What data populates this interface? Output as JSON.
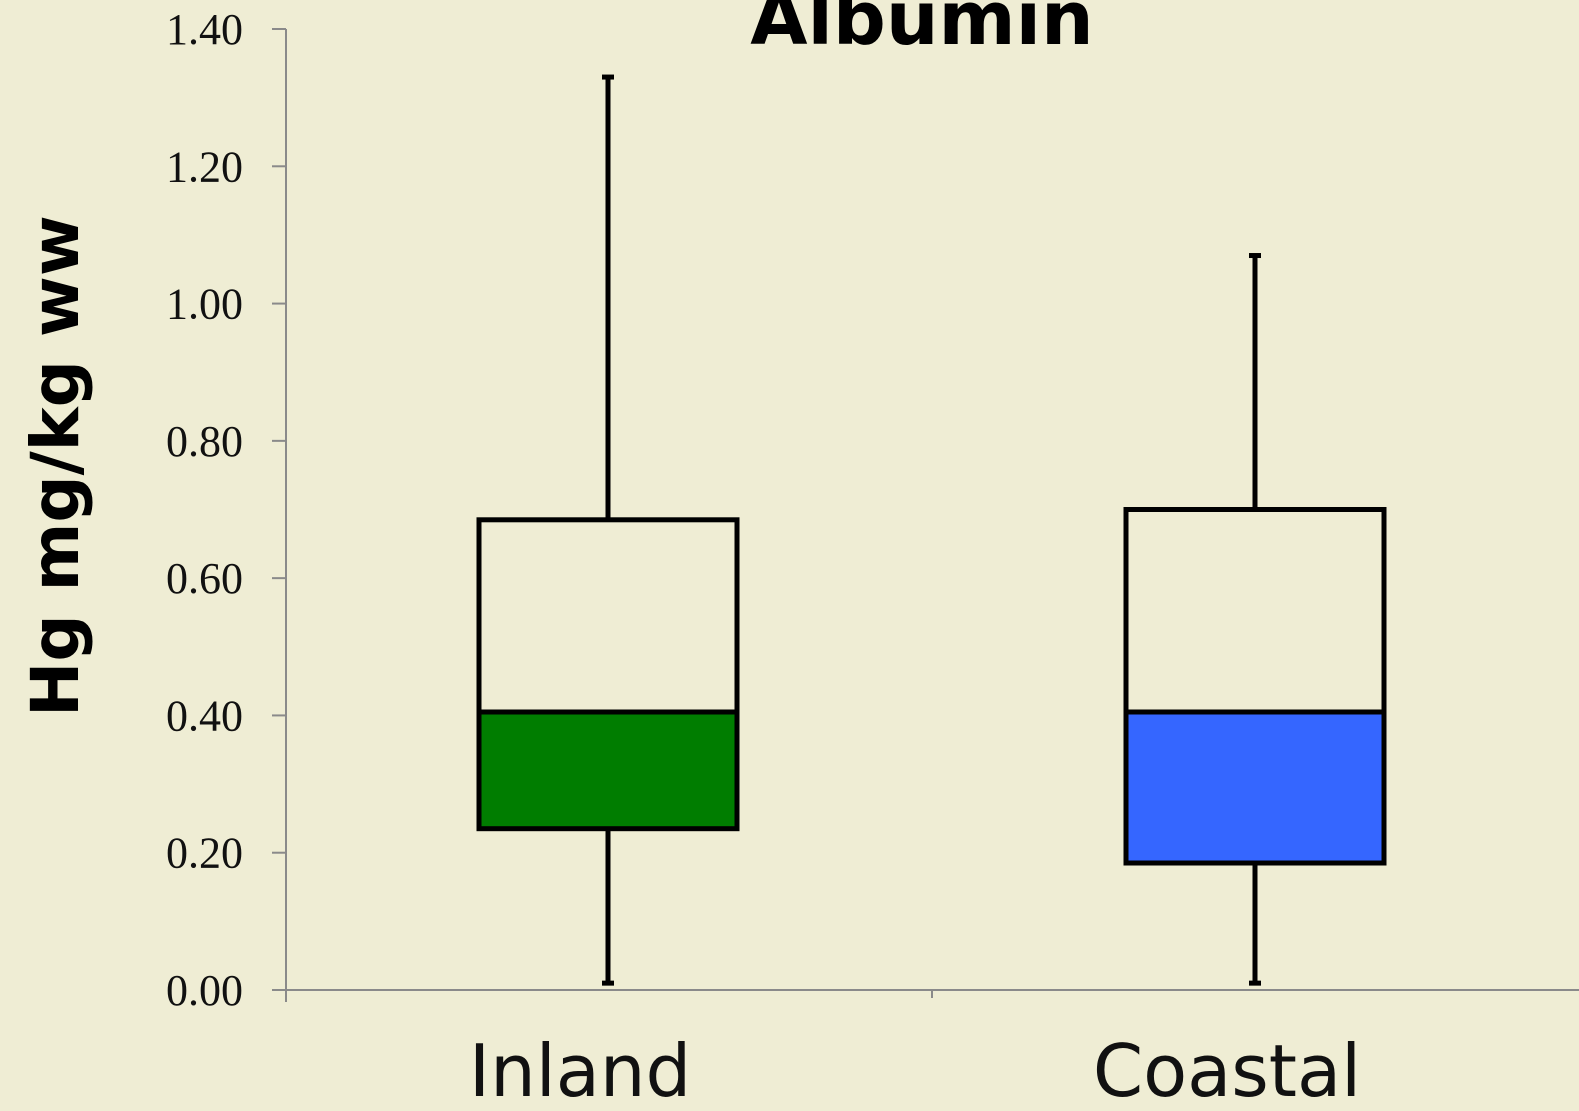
{
  "chart_data": {
    "type": "box",
    "title": "Albumin",
    "ylabel": "Hg mg/kg ww",
    "xlabel": "",
    "ylim": [
      0,
      1.4
    ],
    "yticks": [
      "0.00",
      "0.20",
      "0.40",
      "0.60",
      "0.80",
      "1.00",
      "1.20",
      "1.40"
    ],
    "grid": false,
    "legend": "none",
    "categories": [
      "Inland",
      "Coastal"
    ],
    "boxes": [
      {
        "category": "Inland",
        "min": 0.01,
        "q1": 0.235,
        "median": 0.405,
        "q3": 0.685,
        "max": 1.33,
        "color": "#007d00"
      },
      {
        "category": "Coastal",
        "min": 0.01,
        "q1": 0.185,
        "median": 0.405,
        "q3": 0.7,
        "max": 1.07,
        "color": "#3566ff"
      }
    ],
    "upper_box_color": "#efedd4",
    "axis_color": "#8a8a8a"
  }
}
